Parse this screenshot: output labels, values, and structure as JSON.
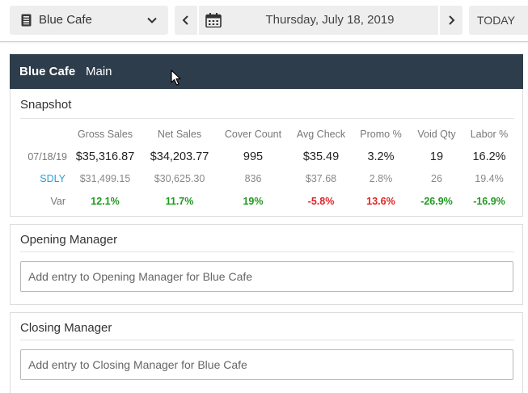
{
  "toolbar": {
    "location": "Blue Cafe",
    "date": "Thursday, July 18, 2019",
    "today_label": "TODAY"
  },
  "header": {
    "store": "Blue Cafe",
    "tab": "Main"
  },
  "snapshot": {
    "title": "Snapshot",
    "columns": [
      "Gross Sales",
      "Net Sales",
      "Cover Count",
      "Avg Check",
      "Promo %",
      "Void Qty",
      "Labor %"
    ],
    "rows": [
      {
        "label": "07/18/19",
        "values": [
          "$35,316.87",
          "$34,203.77",
          "995",
          "$35.49",
          "3.2%",
          "19",
          "16.2%"
        ]
      },
      {
        "label": "SDLY",
        "values": [
          "$31,499.15",
          "$30,625.30",
          "836",
          "$37.68",
          "2.8%",
          "26",
          "19.4%"
        ]
      },
      {
        "label": "Var",
        "values": [
          "12.1%",
          "11.7%",
          "19%",
          "-5.8%",
          "13.6%",
          "-26.9%",
          "-16.9%"
        ]
      }
    ]
  },
  "opening": {
    "title": "Opening Manager",
    "placeholder": "Add entry to Opening Manager for Blue Cafe"
  },
  "closing": {
    "title": "Closing Manager",
    "placeholder": "Add entry to Closing Manager for Blue Cafe"
  },
  "colors": {
    "header_bg": "#2e3d4b",
    "positive": "#1f9a1f",
    "negative": "#e02424",
    "sdly_link": "#2b9fd6"
  },
  "icons": [
    "book-icon",
    "chevron-down-icon",
    "chevron-left-icon",
    "calendar-icon",
    "chevron-right-icon",
    "mouse-cursor-icon"
  ]
}
